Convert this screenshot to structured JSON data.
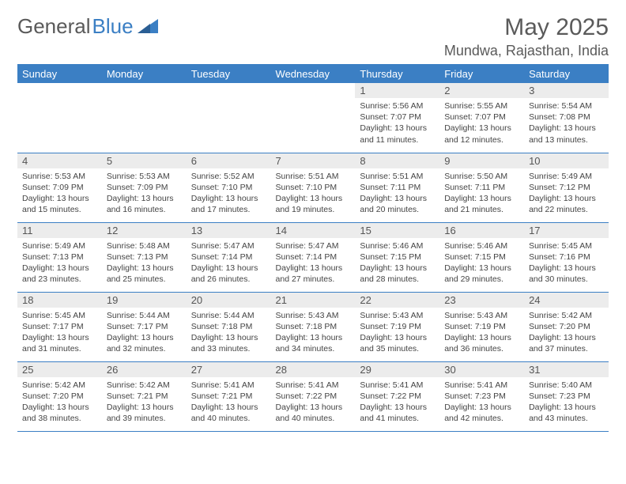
{
  "logo": {
    "text_gray": "General",
    "text_blue": "Blue"
  },
  "header": {
    "month_title": "May 2025",
    "location": "Mundwa, Rajasthan, India"
  },
  "colors": {
    "accent": "#3b7fc4",
    "header_text": "#ffffff",
    "daynum_bg": "#ececec",
    "text": "#555555"
  },
  "day_names": [
    "Sunday",
    "Monday",
    "Tuesday",
    "Wednesday",
    "Thursday",
    "Friday",
    "Saturday"
  ],
  "weeks": [
    [
      {
        "n": "",
        "sr": "",
        "ss": "",
        "dl": ""
      },
      {
        "n": "",
        "sr": "",
        "ss": "",
        "dl": ""
      },
      {
        "n": "",
        "sr": "",
        "ss": "",
        "dl": ""
      },
      {
        "n": "",
        "sr": "",
        "ss": "",
        "dl": ""
      },
      {
        "n": "1",
        "sr": "Sunrise: 5:56 AM",
        "ss": "Sunset: 7:07 PM",
        "dl": "Daylight: 13 hours and 11 minutes."
      },
      {
        "n": "2",
        "sr": "Sunrise: 5:55 AM",
        "ss": "Sunset: 7:07 PM",
        "dl": "Daylight: 13 hours and 12 minutes."
      },
      {
        "n": "3",
        "sr": "Sunrise: 5:54 AM",
        "ss": "Sunset: 7:08 PM",
        "dl": "Daylight: 13 hours and 13 minutes."
      }
    ],
    [
      {
        "n": "4",
        "sr": "Sunrise: 5:53 AM",
        "ss": "Sunset: 7:09 PM",
        "dl": "Daylight: 13 hours and 15 minutes."
      },
      {
        "n": "5",
        "sr": "Sunrise: 5:53 AM",
        "ss": "Sunset: 7:09 PM",
        "dl": "Daylight: 13 hours and 16 minutes."
      },
      {
        "n": "6",
        "sr": "Sunrise: 5:52 AM",
        "ss": "Sunset: 7:10 PM",
        "dl": "Daylight: 13 hours and 17 minutes."
      },
      {
        "n": "7",
        "sr": "Sunrise: 5:51 AM",
        "ss": "Sunset: 7:10 PM",
        "dl": "Daylight: 13 hours and 19 minutes."
      },
      {
        "n": "8",
        "sr": "Sunrise: 5:51 AM",
        "ss": "Sunset: 7:11 PM",
        "dl": "Daylight: 13 hours and 20 minutes."
      },
      {
        "n": "9",
        "sr": "Sunrise: 5:50 AM",
        "ss": "Sunset: 7:11 PM",
        "dl": "Daylight: 13 hours and 21 minutes."
      },
      {
        "n": "10",
        "sr": "Sunrise: 5:49 AM",
        "ss": "Sunset: 7:12 PM",
        "dl": "Daylight: 13 hours and 22 minutes."
      }
    ],
    [
      {
        "n": "11",
        "sr": "Sunrise: 5:49 AM",
        "ss": "Sunset: 7:13 PM",
        "dl": "Daylight: 13 hours and 23 minutes."
      },
      {
        "n": "12",
        "sr": "Sunrise: 5:48 AM",
        "ss": "Sunset: 7:13 PM",
        "dl": "Daylight: 13 hours and 25 minutes."
      },
      {
        "n": "13",
        "sr": "Sunrise: 5:47 AM",
        "ss": "Sunset: 7:14 PM",
        "dl": "Daylight: 13 hours and 26 minutes."
      },
      {
        "n": "14",
        "sr": "Sunrise: 5:47 AM",
        "ss": "Sunset: 7:14 PM",
        "dl": "Daylight: 13 hours and 27 minutes."
      },
      {
        "n": "15",
        "sr": "Sunrise: 5:46 AM",
        "ss": "Sunset: 7:15 PM",
        "dl": "Daylight: 13 hours and 28 minutes."
      },
      {
        "n": "16",
        "sr": "Sunrise: 5:46 AM",
        "ss": "Sunset: 7:15 PM",
        "dl": "Daylight: 13 hours and 29 minutes."
      },
      {
        "n": "17",
        "sr": "Sunrise: 5:45 AM",
        "ss": "Sunset: 7:16 PM",
        "dl": "Daylight: 13 hours and 30 minutes."
      }
    ],
    [
      {
        "n": "18",
        "sr": "Sunrise: 5:45 AM",
        "ss": "Sunset: 7:17 PM",
        "dl": "Daylight: 13 hours and 31 minutes."
      },
      {
        "n": "19",
        "sr": "Sunrise: 5:44 AM",
        "ss": "Sunset: 7:17 PM",
        "dl": "Daylight: 13 hours and 32 minutes."
      },
      {
        "n": "20",
        "sr": "Sunrise: 5:44 AM",
        "ss": "Sunset: 7:18 PM",
        "dl": "Daylight: 13 hours and 33 minutes."
      },
      {
        "n": "21",
        "sr": "Sunrise: 5:43 AM",
        "ss": "Sunset: 7:18 PM",
        "dl": "Daylight: 13 hours and 34 minutes."
      },
      {
        "n": "22",
        "sr": "Sunrise: 5:43 AM",
        "ss": "Sunset: 7:19 PM",
        "dl": "Daylight: 13 hours and 35 minutes."
      },
      {
        "n": "23",
        "sr": "Sunrise: 5:43 AM",
        "ss": "Sunset: 7:19 PM",
        "dl": "Daylight: 13 hours and 36 minutes."
      },
      {
        "n": "24",
        "sr": "Sunrise: 5:42 AM",
        "ss": "Sunset: 7:20 PM",
        "dl": "Daylight: 13 hours and 37 minutes."
      }
    ],
    [
      {
        "n": "25",
        "sr": "Sunrise: 5:42 AM",
        "ss": "Sunset: 7:20 PM",
        "dl": "Daylight: 13 hours and 38 minutes."
      },
      {
        "n": "26",
        "sr": "Sunrise: 5:42 AM",
        "ss": "Sunset: 7:21 PM",
        "dl": "Daylight: 13 hours and 39 minutes."
      },
      {
        "n": "27",
        "sr": "Sunrise: 5:41 AM",
        "ss": "Sunset: 7:21 PM",
        "dl": "Daylight: 13 hours and 40 minutes."
      },
      {
        "n": "28",
        "sr": "Sunrise: 5:41 AM",
        "ss": "Sunset: 7:22 PM",
        "dl": "Daylight: 13 hours and 40 minutes."
      },
      {
        "n": "29",
        "sr": "Sunrise: 5:41 AM",
        "ss": "Sunset: 7:22 PM",
        "dl": "Daylight: 13 hours and 41 minutes."
      },
      {
        "n": "30",
        "sr": "Sunrise: 5:41 AM",
        "ss": "Sunset: 7:23 PM",
        "dl": "Daylight: 13 hours and 42 minutes."
      },
      {
        "n": "31",
        "sr": "Sunrise: 5:40 AM",
        "ss": "Sunset: 7:23 PM",
        "dl": "Daylight: 13 hours and 43 minutes."
      }
    ]
  ]
}
